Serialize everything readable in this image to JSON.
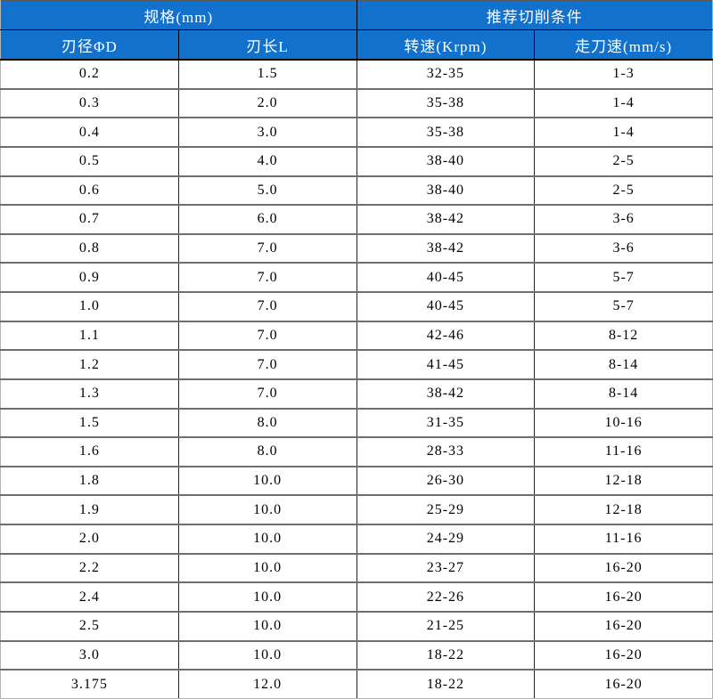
{
  "colors": {
    "header_bg": "#1271CD",
    "header_text": "#FFFFFF",
    "body_bg": "#FFFFFF",
    "body_text": "#000000",
    "grid_horizontal": "#6E6E6E",
    "grid_vertical": "#232323",
    "outer_border": "#B3B3B3",
    "header_grid": "#000000"
  },
  "chart_data": {
    "type": "table",
    "title": "",
    "column_groups": [
      {
        "label": "规格(mm)",
        "span": 2
      },
      {
        "label": "推荐切削条件",
        "span": 2
      }
    ],
    "columns": [
      "刃径ΦD",
      "刃长L",
      "转速(Krpm)",
      "走刀速(mm/s)"
    ],
    "rows": [
      [
        "0.2",
        "1.5",
        "32-35",
        "1-3"
      ],
      [
        "0.3",
        "2.0",
        "35-38",
        "1-4"
      ],
      [
        "0.4",
        "3.0",
        "35-38",
        "1-4"
      ],
      [
        "0.5",
        "4.0",
        "38-40",
        "2-5"
      ],
      [
        "0.6",
        "5.0",
        "38-40",
        "2-5"
      ],
      [
        "0.7",
        "6.0",
        "38-42",
        "3-6"
      ],
      [
        "0.8",
        "7.0",
        "38-42",
        "3-6"
      ],
      [
        "0.9",
        "7.0",
        "40-45",
        "5-7"
      ],
      [
        "1.0",
        "7.0",
        "40-45",
        "5-7"
      ],
      [
        "1.1",
        "7.0",
        "42-46",
        "8-12"
      ],
      [
        "1.2",
        "7.0",
        "41-45",
        "8-14"
      ],
      [
        "1.3",
        "7.0",
        "38-42",
        "8-14"
      ],
      [
        "1.5",
        "8.0",
        "31-35",
        "10-16"
      ],
      [
        "1.6",
        "8.0",
        "28-33",
        "11-16"
      ],
      [
        "1.8",
        "10.0",
        "26-30",
        "12-18"
      ],
      [
        "1.9",
        "10.0",
        "25-29",
        "12-18"
      ],
      [
        "2.0",
        "10.0",
        "24-29",
        "11-16"
      ],
      [
        "2.2",
        "10.0",
        "23-27",
        "16-20"
      ],
      [
        "2.4",
        "10.0",
        "22-26",
        "16-20"
      ],
      [
        "2.5",
        "10.0",
        "21-25",
        "16-20"
      ],
      [
        "3.0",
        "10.0",
        "18-22",
        "16-20"
      ],
      [
        "3.175",
        "12.0",
        "18-22",
        "16-20"
      ]
    ]
  }
}
